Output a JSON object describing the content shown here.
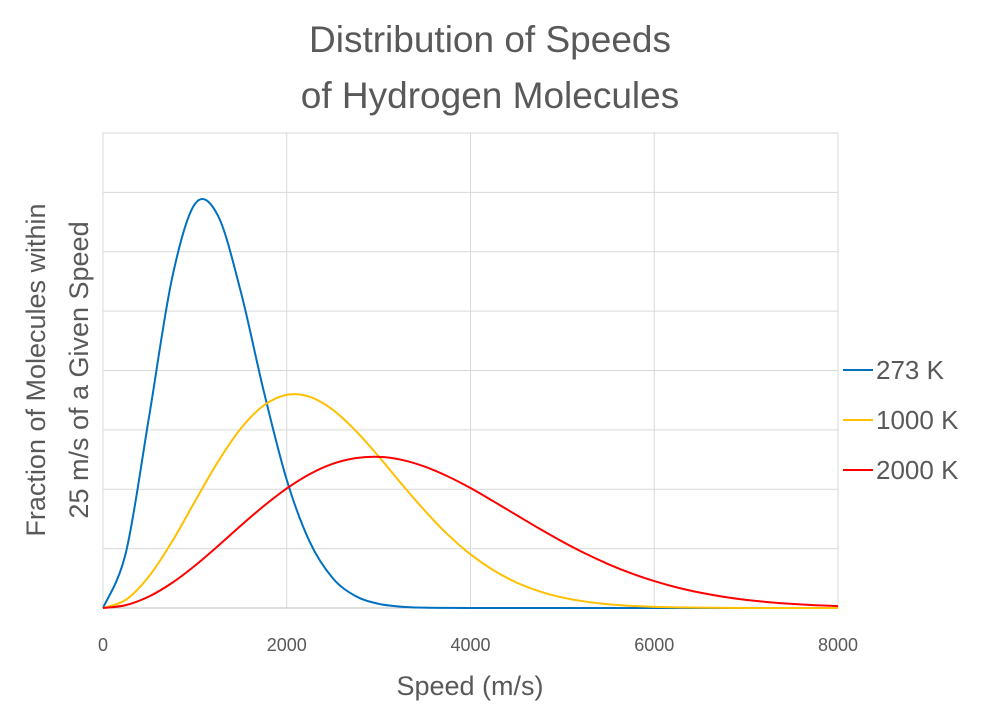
{
  "chart_data": {
    "type": "line",
    "title": [
      "Distribution of Speeds",
      "of Hydrogen Molecules"
    ],
    "xlabel": "Speed (m/s)",
    "ylabel": [
      "Fraction of Molecules within",
      "25 m/s of a Given Speed"
    ],
    "xlim": [
      0,
      8000
    ],
    "ylim": [
      0,
      0.0443
    ],
    "x_ticks": [
      "0",
      "2000",
      "4000",
      "6000",
      "8000"
    ],
    "x_tick_values": [
      0,
      2000,
      4000,
      6000,
      8000
    ],
    "y_gridlines": 8,
    "grid": true,
    "legend_position": "right",
    "x": [
      0,
      250,
      500,
      750,
      1000,
      1250,
      1500,
      1750,
      2000,
      2250,
      2500,
      2750,
      3000,
      3250,
      3500,
      3750,
      4000,
      4250,
      4500,
      4750,
      5000,
      5250,
      5500,
      5750,
      6000,
      6250,
      6500,
      6750,
      7000,
      7250,
      7500,
      7750,
      8000
    ],
    "series": [
      {
        "name": "273 K",
        "color": "#0070C0",
        "values": [
          0,
          0.0052,
          0.01776,
          0.03068,
          0.03768,
          0.03661,
          0.02949,
          0.02021,
          0.01195,
          0.00617,
          0.00279,
          0.00111,
          0.00039,
          0.00012,
          3e-05,
          1e-05,
          0,
          0,
          0,
          0,
          0,
          0,
          0,
          0,
          0,
          0,
          0,
          0,
          0,
          0,
          0,
          0,
          0
        ]
      },
      {
        "name": "1000 K",
        "color": "#FFC000",
        "values": [
          0,
          0.00077,
          0.00295,
          0.00617,
          0.00993,
          0.01362,
          0.01674,
          0.01889,
          0.01988,
          0.0197,
          0.0185,
          0.01654,
          0.01414,
          0.01157,
          0.0091,
          0.00687,
          0.00501,
          0.00352,
          0.00238,
          0.00156,
          0.00098,
          0.0006,
          0.00035,
          0.0002,
          0.00011,
          6e-05,
          3e-05,
          1e-05,
          0,
          0,
          0,
          0,
          0
        ]
      },
      {
        "name": "2000 K",
        "color": "#FF0000",
        "values": [
          0,
          0.00027,
          0.00107,
          0.00233,
          0.00394,
          0.00577,
          0.00768,
          0.00951,
          0.01115,
          0.01249,
          0.01345,
          0.01398,
          0.0141,
          0.01382,
          0.01319,
          0.01229,
          0.01119,
          0.00995,
          0.00867,
          0.0074,
          0.00619,
          0.00508,
          0.00409,
          0.00323,
          0.00251,
          0.00191,
          0.00143,
          0.00105,
          0.00076,
          0.00054,
          0.00038,
          0.00026,
          0.00018
        ]
      }
    ]
  }
}
